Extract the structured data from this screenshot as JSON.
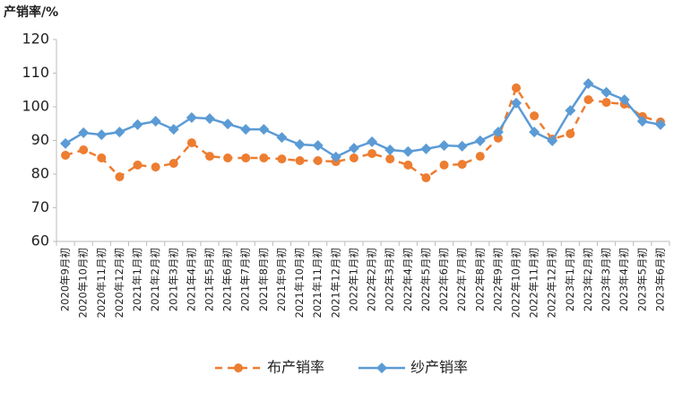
{
  "chart_data": {
    "type": "line",
    "title": "产销率/%",
    "categories": [
      "2020年9月初",
      "2020年10月初",
      "2020年11月初",
      "2020年12月初",
      "2021年1月初",
      "2021年2月初",
      "2021年3月初",
      "2021年4月初",
      "2021年5月初",
      "2021年6月初",
      "2021年7月初",
      "2021年8月初",
      "2021年9月初",
      "2021年10月初",
      "2021年11月初",
      "2021年12月初",
      "2022年1月初",
      "2022年2月初",
      "2022年3月初",
      "2022年4月初",
      "2022年5月初",
      "2022年6月初",
      "2022年7月初",
      "2022年8月初",
      "2022年9月初",
      "2022年10月初",
      "2022年11月初",
      "2022年12月初",
      "2023年1月初",
      "2023年2月初",
      "2023年3月初",
      "2023年4月初",
      "2023年5月初",
      "2023年6月初"
    ],
    "series": [
      {
        "name": "布产销率",
        "color": "#ed7d31",
        "dashed": true,
        "marker": "circle",
        "values": [
          85.6,
          87.2,
          84.8,
          79.2,
          82.7,
          82.1,
          83.2,
          89.3,
          85.3,
          84.8,
          84.8,
          84.8,
          84.5,
          84,
          84,
          83.7,
          84.8,
          86.1,
          84.5,
          82.7,
          78.9,
          82.7,
          82.9,
          85.3,
          90.7,
          105.6,
          97.3,
          90.4,
          92,
          102.1,
          101.3,
          100.8,
          97.1,
          95.5
        ]
      },
      {
        "name": "纱产销率",
        "color": "#5b9bd5",
        "dashed": false,
        "marker": "diamond",
        "values": [
          89.1,
          92.3,
          91.7,
          92.5,
          94.7,
          95.7,
          93.3,
          96.8,
          96.5,
          94.9,
          93.3,
          93.3,
          90.9,
          88.8,
          88.5,
          85.1,
          87.7,
          89.6,
          87.2,
          86.7,
          87.5,
          88.5,
          88.3,
          89.9,
          92.5,
          101.1,
          92.5,
          89.9,
          98.9,
          106.9,
          104.3,
          102.1,
          95.7,
          94.7
        ]
      }
    ],
    "ylim": [
      60,
      120
    ],
    "yticks": [
      60,
      70,
      80,
      90,
      100,
      110,
      120
    ],
    "grid": false,
    "legend": "bottom"
  }
}
